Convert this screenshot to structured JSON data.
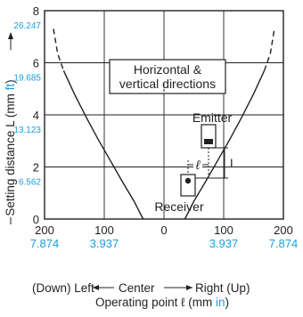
{
  "chart_data": {
    "type": "line",
    "xlabel_prefix": "Operating point ℓ (mm ",
    "xlabel_unit": "in",
    "xlabel_suffix": ")",
    "ylabel_prefix": "Setting distance L (mm ",
    "ylabel_unit": "ft",
    "ylabel_suffix": ")",
    "xlim": [
      -200,
      200
    ],
    "ylim": [
      0,
      8
    ],
    "x_ticks": [
      -200,
      -100,
      0,
      100,
      200
    ],
    "x_tick_labels": [
      "200",
      "100",
      "0",
      "100",
      "200"
    ],
    "x_tick_labels_in": [
      "7.874",
      "3.937",
      "",
      "3.937",
      "7.874"
    ],
    "y_ticks": [
      0,
      2,
      4,
      6,
      8
    ],
    "y_tick_labels": [
      "0",
      "2",
      "4",
      "6",
      "8"
    ],
    "y_tick_labels_ft": [
      "",
      "6.562",
      "13.123",
      "19.685",
      "26.247"
    ],
    "direction_labels": {
      "left": "(Down) Left",
      "center": "Center",
      "right": "Right (Up)"
    },
    "annotation": [
      "Horizontal &",
      "vertical directions"
    ],
    "device_labels": {
      "emitter": "Emitter",
      "receiver": "Receiver",
      "L": "L",
      "ell": "ℓ"
    },
    "grid": true,
    "series": [
      {
        "x": [
          -185,
          -178,
          -168,
          -150,
          -130,
          -110,
          -90,
          -70,
          -50,
          -35,
          35,
          50,
          70,
          90,
          110,
          130,
          150,
          168,
          178,
          185
        ],
        "y": [
          7.3,
          6.35,
          5.7,
          4.8,
          3.9,
          3.05,
          2.25,
          1.45,
          0.68,
          0.0,
          0.0,
          0.68,
          1.45,
          2.25,
          3.05,
          3.9,
          4.8,
          5.7,
          6.35,
          7.3
        ]
      }
    ]
  }
}
